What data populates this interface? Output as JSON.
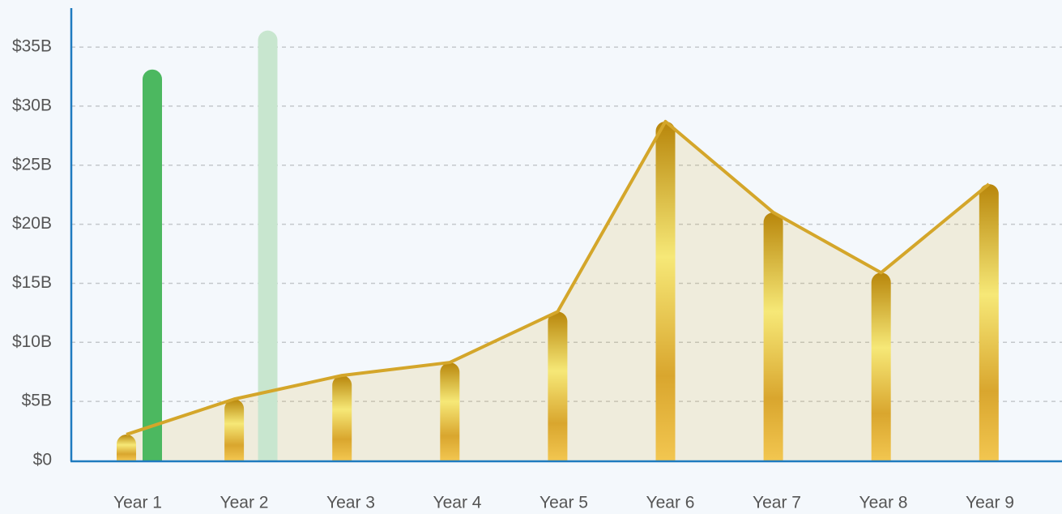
{
  "chart_data": {
    "type": "combo",
    "categories": [
      "Year 1",
      "Year 2",
      "Year 3",
      "Year 4",
      "Year 5",
      "Year 6",
      "Year 7",
      "Year 8",
      "Year 9"
    ],
    "series": [
      {
        "type": "bar_line",
        "color": "#d4a62a",
        "values": [
          2.2,
          5.2,
          7.2,
          8.3,
          12.6,
          28.7,
          21.0,
          15.9,
          23.4
        ]
      },
      {
        "type": "bar",
        "colors": [
          "#4cb860",
          "#c8e6cf",
          null,
          null,
          null,
          null,
          null,
          null,
          null
        ],
        "values": [
          33.1,
          36.4,
          null,
          null,
          null,
          null,
          null,
          null,
          null
        ]
      }
    ],
    "ylim": [
      0,
      38.3
    ],
    "yticks": [
      {
        "value": 0,
        "label": "$0"
      },
      {
        "value": 5,
        "label": "$5B"
      },
      {
        "value": 10,
        "label": "$10B"
      },
      {
        "value": 15,
        "label": "$15B"
      },
      {
        "value": 20,
        "label": "$20B"
      },
      {
        "value": 25,
        "label": "$25B"
      },
      {
        "value": 30,
        "label": "$30B"
      },
      {
        "value": 35,
        "label": "$35B"
      }
    ],
    "grid": true
  }
}
